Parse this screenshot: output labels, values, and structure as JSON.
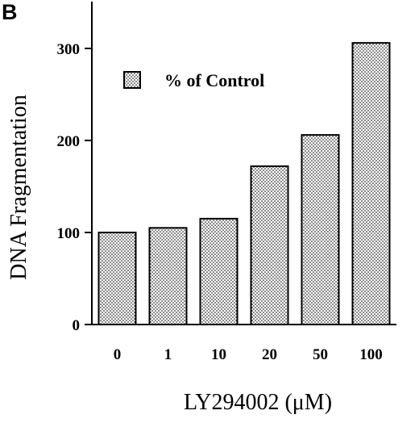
{
  "panel_label": "B",
  "legend": {
    "label": "% of Control"
  },
  "chart_data": {
    "type": "bar",
    "categories": [
      "0",
      "1",
      "10",
      "20",
      "50",
      "100"
    ],
    "values": [
      100,
      105,
      115,
      172,
      206,
      306
    ],
    "xlabel": "LY294002 (μM)",
    "ylabel": "DNA Fragmentation",
    "ylim": [
      0,
      300
    ],
    "yticks": [
      0,
      100,
      200,
      300
    ],
    "legend_position": "top-left",
    "grid": false
  }
}
